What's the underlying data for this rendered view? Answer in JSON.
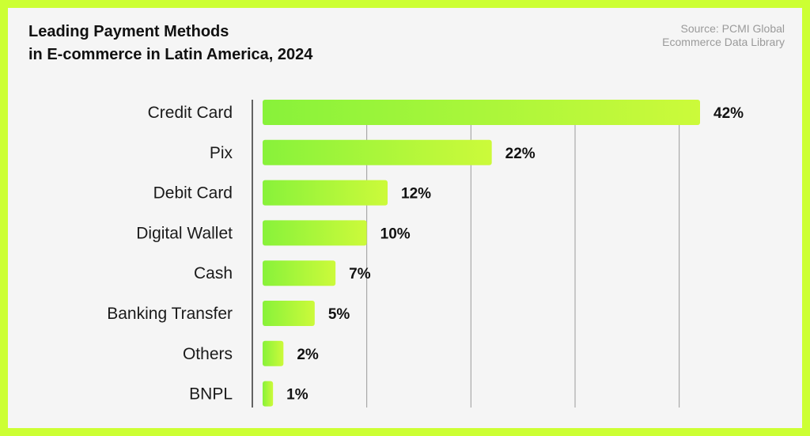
{
  "title": {
    "line1": "Leading Payment Methods",
    "line2": "in E-commerce in Latin America, 2024"
  },
  "source": {
    "line1": "Source: PCMI Global",
    "line2": "Ecommerce Data Library"
  },
  "colors": {
    "frame": "#ccff33",
    "bar_start": "#88f23a",
    "bar_end": "#ccfa3a"
  },
  "chart_data": {
    "type": "bar",
    "orientation": "horizontal",
    "title": "Leading Payment Methods in E-commerce in Latin America, 2024",
    "categories": [
      "Credit Card",
      "Pix",
      "Debit Card",
      "Digital Wallet",
      "Cash",
      "Banking Transfer",
      "Others",
      "BNPL"
    ],
    "values": [
      42,
      22,
      12,
      10,
      7,
      5,
      2,
      1
    ],
    "value_labels": [
      "42%",
      "22%",
      "12%",
      "10%",
      "7%",
      "5%",
      "2%",
      "1%"
    ],
    "xlim": [
      0,
      42
    ],
    "gridlines": [
      10,
      20,
      30,
      40
    ],
    "xlabel": "",
    "ylabel": "",
    "grid": true
  }
}
